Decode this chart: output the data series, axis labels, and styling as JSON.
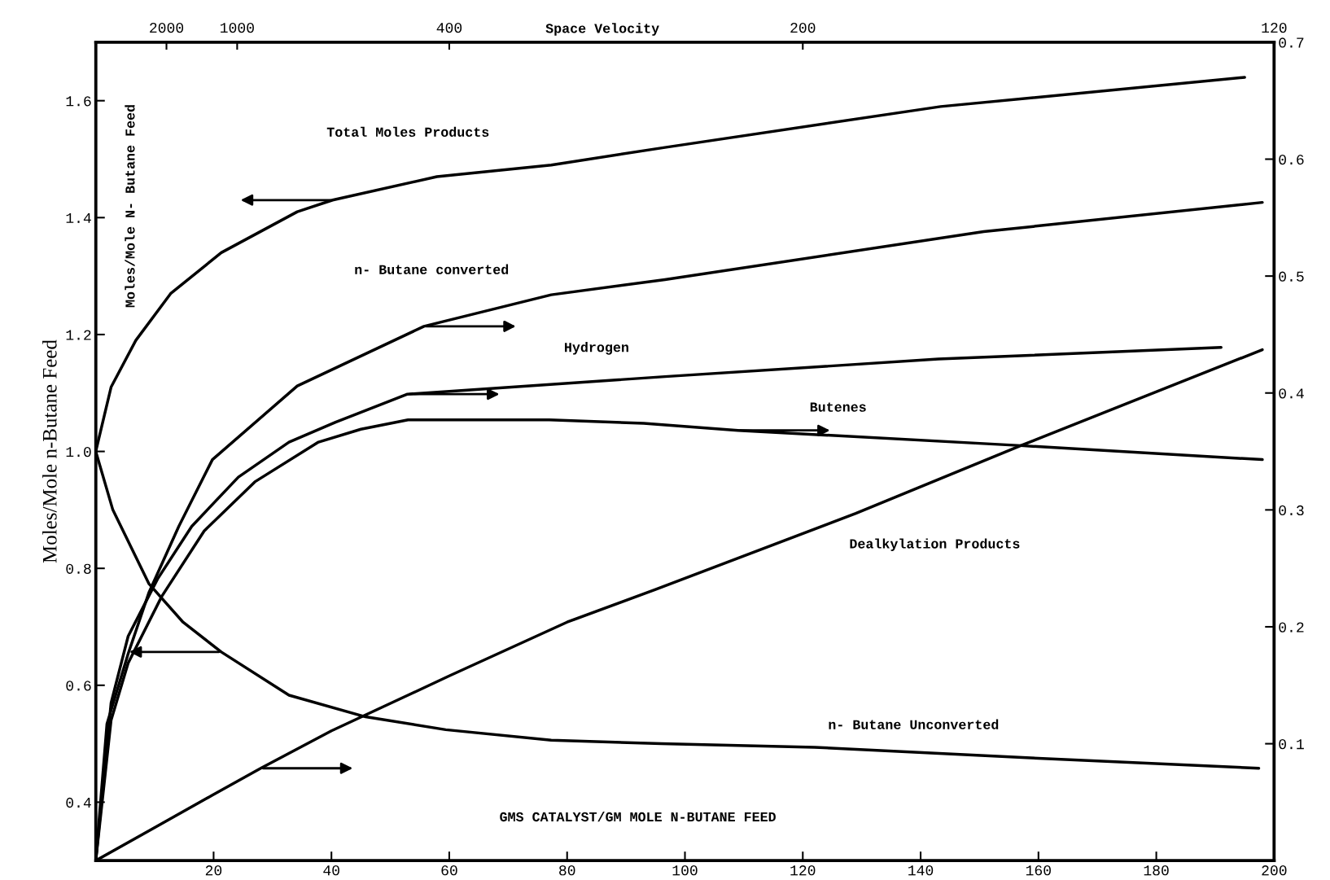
{
  "chart_data": {
    "type": "line",
    "xlabel": "GMS CATALYST/GM MOLE N-BUTANE FEED",
    "ylabel": "Moles/Mole n-Butane Feed",
    "xlim": [
      0,
      200
    ],
    "xticks": [
      20,
      40,
      60,
      80,
      100,
      120,
      140,
      160,
      180,
      200
    ],
    "ylim": [
      0.3,
      1.7
    ],
    "yticks": [
      0.4,
      0.6,
      0.8,
      {
        "value": 1.0,
        "label": "1.0"
      },
      1.2,
      1.4,
      1.6
    ],
    "y2lim": [
      0,
      0.7
    ],
    "y2ticks": [
      0.1,
      0.2,
      0.3,
      0.4,
      0.5,
      0.6,
      0.7
    ],
    "annotations": [
      "Moles/Mole N- Butane Feed",
      "Space Velocity",
      "2000",
      "1000",
      "400",
      "200",
      "120"
    ],
    "series": [
      {
        "name": "Total Moles Products",
        "color": "#000000",
        "axis": "y",
        "x": [
          0,
          2.6,
          6.8,
          12.7,
          21.3,
          34.2,
          40.2,
          57.9,
          77.3,
          96.6,
          143.4,
          195
        ],
        "values": [
          1.0,
          1.11,
          1.19,
          1.27,
          1.34,
          1.41,
          1.43,
          1.47,
          1.49,
          1.52,
          1.59,
          1.64
        ]
      },
      {
        "name": "n- Butane converted",
        "color": "#000000",
        "axis": "y2",
        "x": [
          0,
          1.9,
          5.5,
          9,
          14.1,
          19.8,
          34.2,
          55.7,
          77.3,
          96.6,
          150.7,
          198
        ],
        "values": [
          0,
          0.117,
          0.177,
          0.229,
          0.286,
          0.343,
          0.406,
          0.457,
          0.484,
          0.497,
          0.538,
          0.563
        ]
      },
      {
        "name": "Hydrogen",
        "color": "#000000",
        "axis": "y2",
        "x": [
          0,
          2.6,
          5.5,
          10.5,
          16.3,
          24.2,
          32.8,
          40.7,
          52.9,
          96.6,
          143,
          191
        ],
        "values": [
          0,
          0.135,
          0.192,
          0.241,
          0.286,
          0.328,
          0.358,
          0.375,
          0.399,
          0.414,
          0.429,
          0.439
        ]
      },
      {
        "name": "Butenes",
        "color": "#000000",
        "axis": "y2",
        "x": [
          0,
          2.6,
          5.5,
          11.2,
          18.4,
          27,
          37.8,
          45,
          53,
          77,
          93,
          109,
          157,
          198
        ],
        "values": [
          0,
          0.12,
          0.169,
          0.226,
          0.282,
          0.324,
          0.358,
          0.369,
          0.377,
          0.377,
          0.374,
          0.368,
          0.355,
          0.343
        ]
      },
      {
        "name": "Dealkylation Products",
        "color": "#000000",
        "axis": "y2",
        "x": [
          0,
          19.8,
          28,
          40,
          60,
          80,
          95,
          129,
          157,
          198
        ],
        "values": [
          0,
          0.056,
          0.079,
          0.111,
          0.158,
          0.204,
          0.232,
          0.297,
          0.355,
          0.437
        ]
      },
      {
        "name": "n- Butane Unconverted",
        "color": "#000000",
        "axis": "y",
        "x": [
          0,
          2.9,
          9,
          14.8,
          21.3,
          32.8,
          45.8,
          59.4,
          77.3,
          96,
          122,
          158,
          197.4
        ],
        "values": [
          1.0,
          0.9,
          0.774,
          0.708,
          0.657,
          0.583,
          0.546,
          0.524,
          0.506,
          0.5,
          0.494,
          0.476,
          0.458
        ]
      }
    ]
  }
}
